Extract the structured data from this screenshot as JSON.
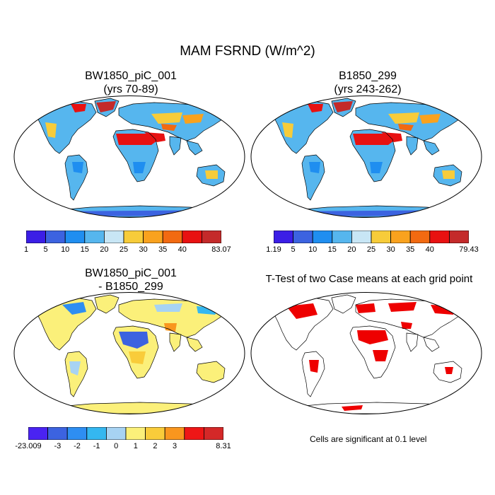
{
  "main_title": "MAM FSRND (W/m^2)",
  "panels": [
    {
      "title": "BW1850_piC_001",
      "subtitle": "(yrs 70-89)"
    },
    {
      "title": "B1850_299",
      "subtitle": "(yrs 243-262)"
    },
    {
      "title": "BW1850_piC_001",
      "subtitle": "- B1850_299"
    },
    {
      "title": "T-Test of two Case means at each grid point",
      "subtitle": ""
    }
  ],
  "colorbars": [
    {
      "labels": [
        "1",
        "5",
        "10",
        "15",
        "20",
        "25",
        "30",
        "35",
        "40",
        "83.07"
      ]
    },
    {
      "labels": [
        "1.19",
        "5",
        "10",
        "15",
        "20",
        "25",
        "30",
        "35",
        "40",
        "79.43"
      ]
    },
    {
      "labels": [
        "-23.009",
        "-3",
        "-2",
        "-1",
        "0",
        "1",
        "2",
        "3",
        "8.31"
      ]
    }
  ],
  "palette_main": [
    "#3b1ee6",
    "#3c63e0",
    "#1f8ef0",
    "#56b6ee",
    "#c8e6f5",
    "#f7cc3a",
    "#f9a21e",
    "#f26a11",
    "#e81111",
    "#c42a2a"
  ],
  "palette_diff": [
    "#4a23f2",
    "#3c63e0",
    "#2e8ef2",
    "#34b7f0",
    "#a7d3f3",
    "#fbf07a",
    "#f9cc3a",
    "#f9961e",
    "#ee1616",
    "#d42828"
  ],
  "ttest_color": "#ee0000",
  "note": "Cells are significant at 0.1 level"
}
